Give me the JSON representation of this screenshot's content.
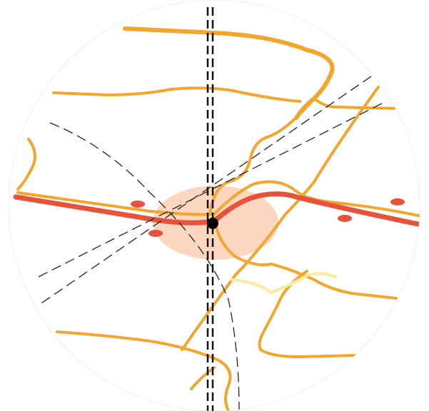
{
  "map": {
    "colors": {
      "background": "#ffffff",
      "circle_edge": "#eeeeee",
      "highlight_zone": "#fcd6bf",
      "major_road": "#e6533a",
      "secondary_road": "#f3a52c",
      "minor_road": "#fbeb9a",
      "dashed_line": "#222222",
      "dashed_border": "#111111",
      "location_marker": "#000000",
      "poi_marker": "#e6533a"
    },
    "features": {
      "highlight_zone": "circular-area",
      "major_road": "red-highway",
      "secondary_roads": "orange-roads",
      "minor_road": "yellow-road",
      "dashed_lines": "thin-dashed-lines",
      "dashed_border": "double-dashed-boundary",
      "location_marker": "current-location-dot",
      "poi_markers": "red-ellipse-markers"
    }
  }
}
